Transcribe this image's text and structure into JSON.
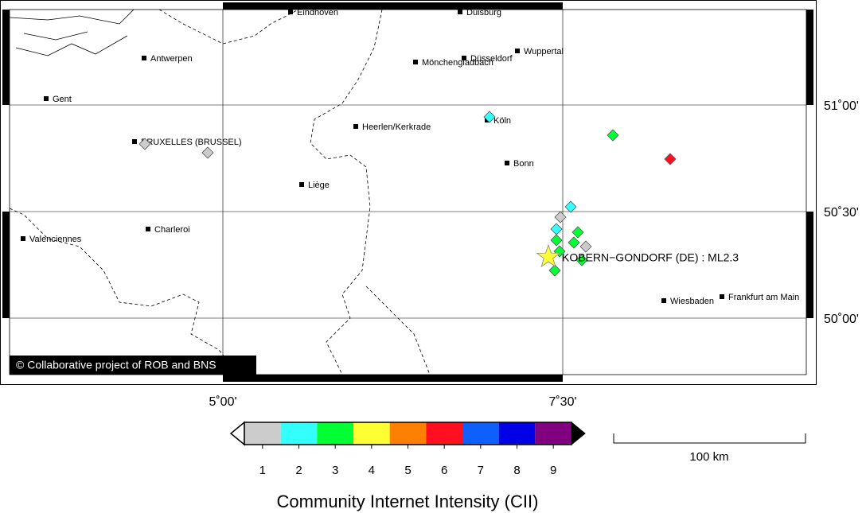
{
  "map": {
    "cities": [
      "Eindhoven",
      "Duisburg",
      "Antwerpen",
      "Mönchengladbach",
      "Düsseldorf",
      "Wuppertal",
      "Gent",
      "Köln",
      "Heerlen/Kerkrade",
      "BRUXELLES (BRUSSEL)",
      "Bonn",
      "Liège",
      "Charleroi",
      "Valenciennes",
      "Wiesbaden",
      "Frankfurt am Main"
    ],
    "event_label": "KOBERN−GONDORF (DE) : ML2.3",
    "copyright": "© Collaborative project of ROB and BNS",
    "lon_labels": [
      "5˚00'",
      "7˚30'"
    ],
    "lat_labels": [
      "51˚00'",
      "50˚30'",
      "50˚00'"
    ],
    "report_intensities": [
      1,
      1,
      1,
      1,
      2,
      2,
      2,
      3,
      3,
      3,
      3,
      3,
      3,
      3,
      6
    ],
    "scale_label": "100 km"
  },
  "colorbar": {
    "levels": [
      1,
      2,
      3,
      4,
      5,
      6,
      7,
      8,
      9
    ],
    "colors": [
      "#cccccc",
      "#33ffff",
      "#00ff33",
      "#ffff33",
      "#ff8000",
      "#ff0f1f",
      "#0f5fff",
      "#0000e6",
      "#800080"
    ],
    "title": "Community Internet Intensity (CII)"
  }
}
